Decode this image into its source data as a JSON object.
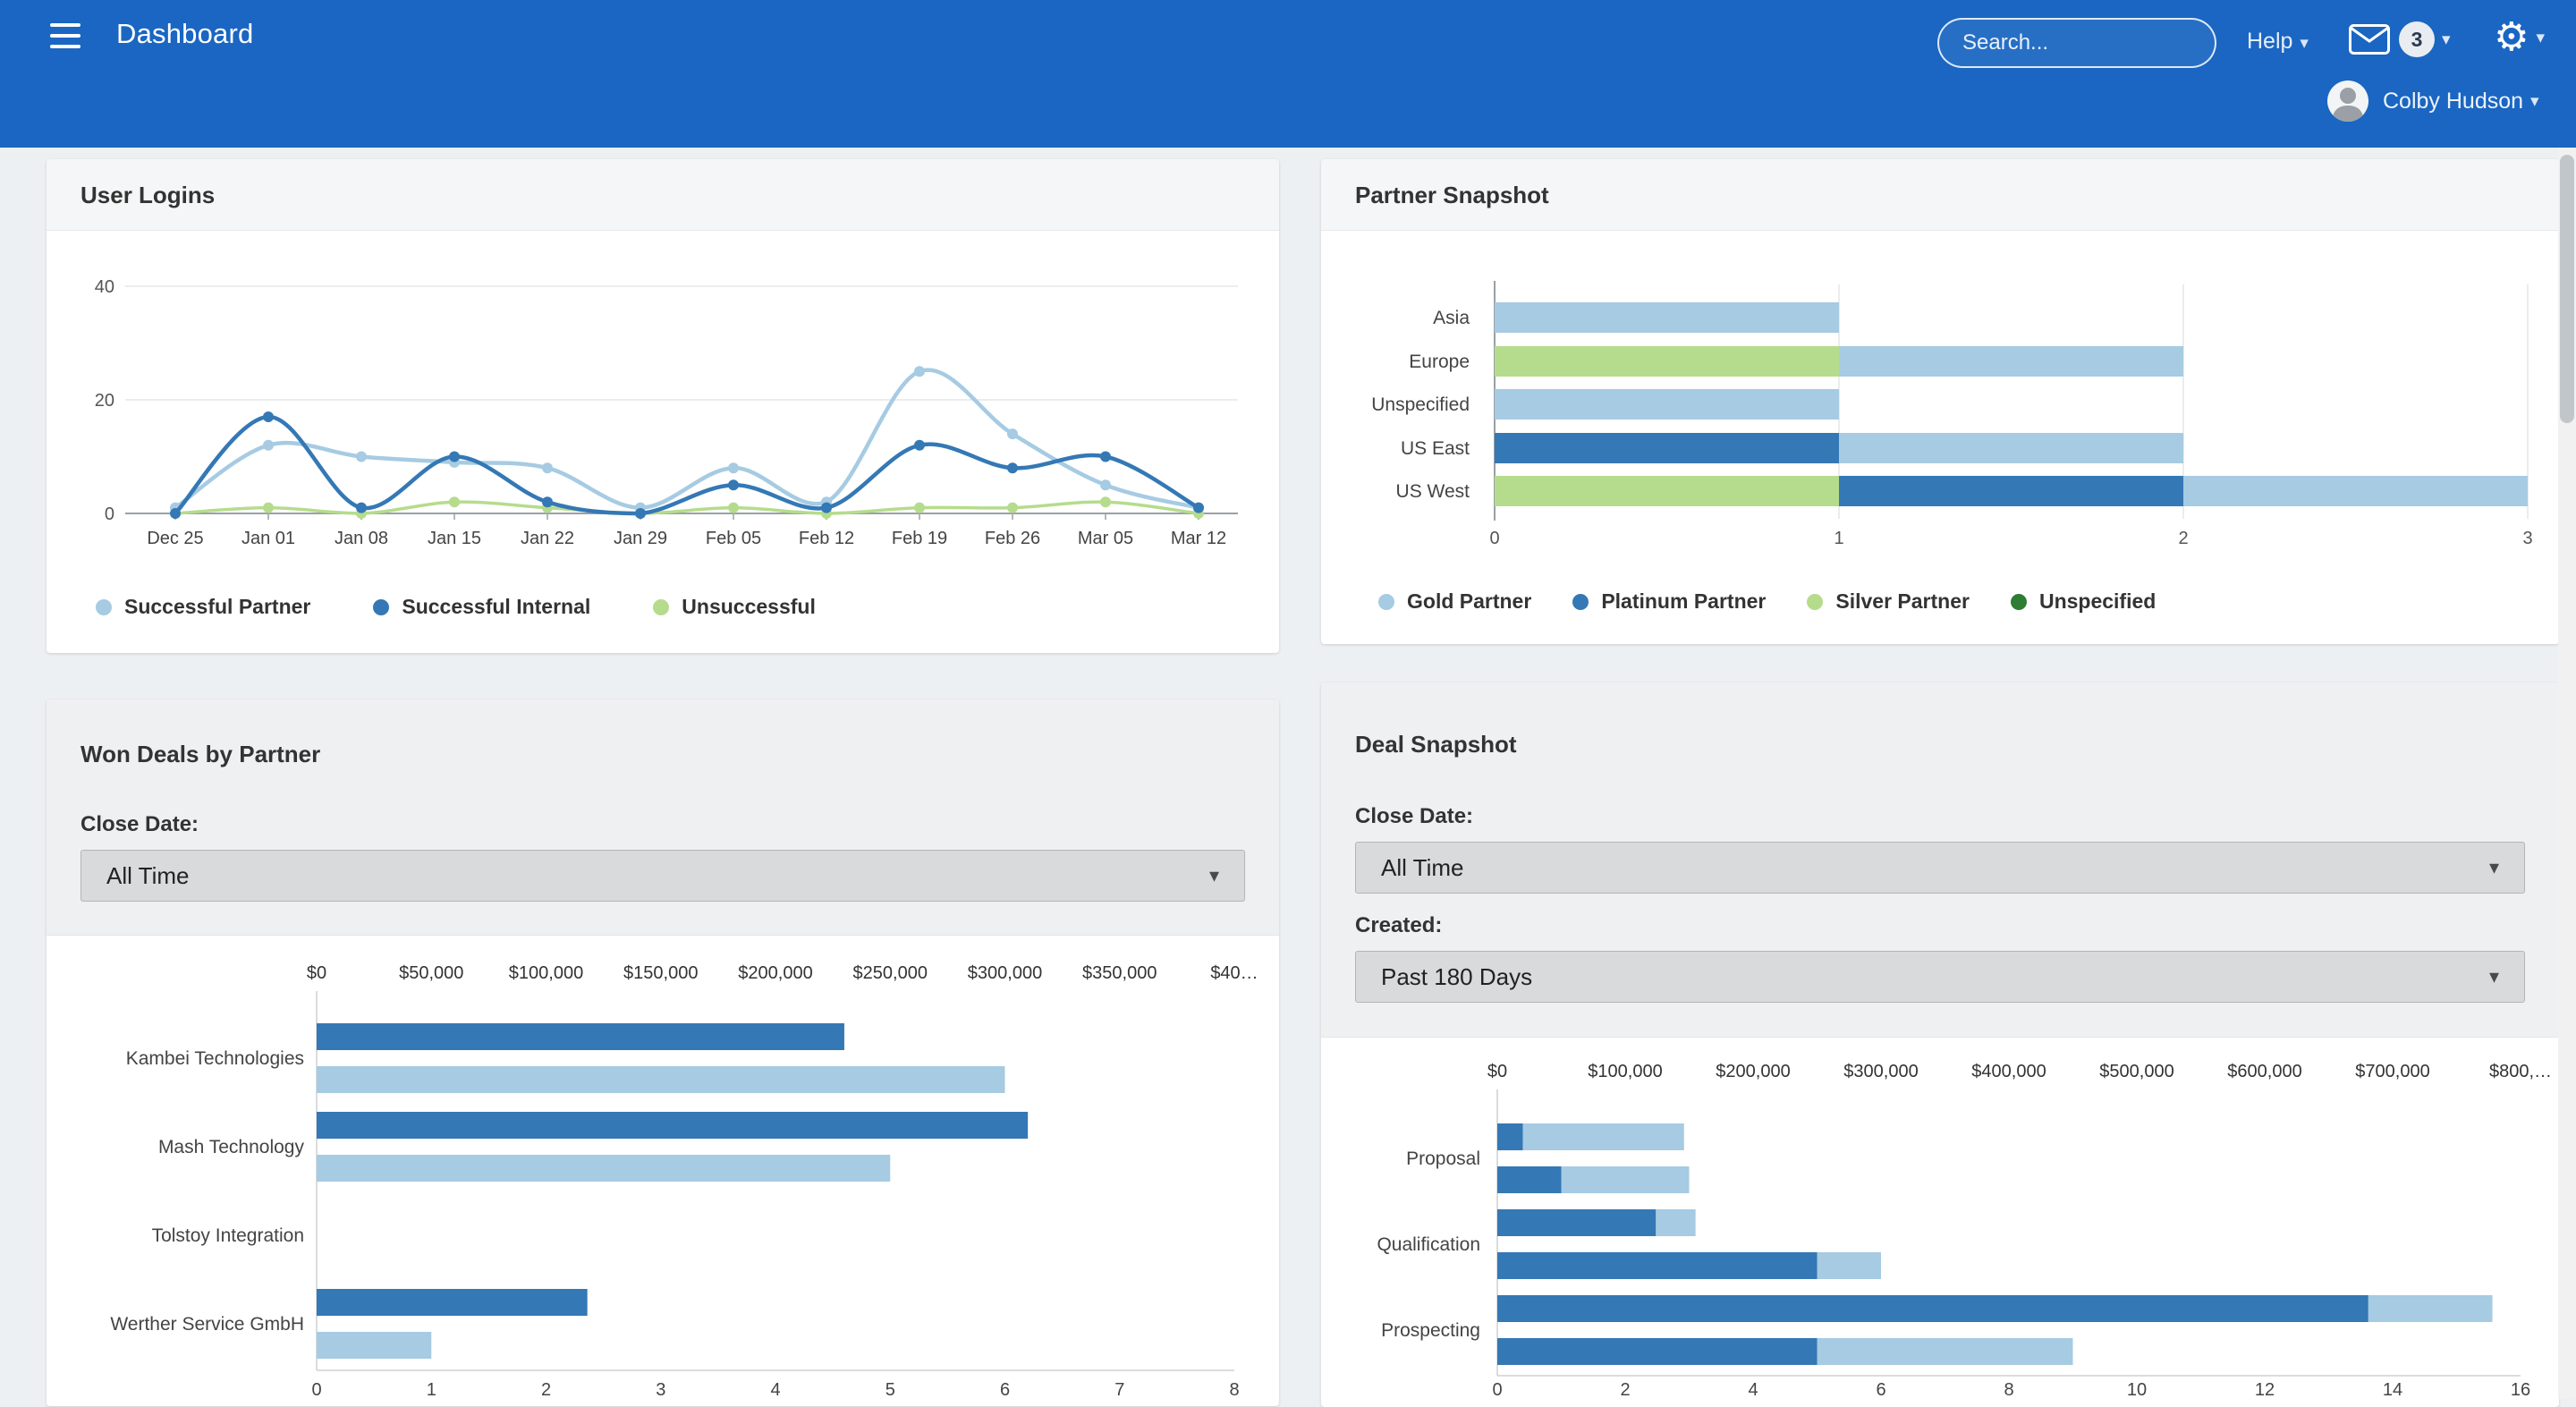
{
  "header": {
    "title": "Dashboard",
    "search_placeholder": "Search...",
    "help_label": "Help",
    "mail_badge": "3",
    "user_name": "Colby Hudson"
  },
  "colors": {
    "header_blue": "#1a66c2",
    "dark_blue": "#3478b5",
    "light_blue": "#a6cbe3",
    "green": "#b5dc8c",
    "dark_green": "#2e7d32"
  },
  "panels": {
    "user_logins": {
      "title": "User Logins"
    },
    "partner_snapshot": {
      "title": "Partner Snapshot"
    },
    "won_deals": {
      "title": "Won Deals by Partner",
      "close_date_label": "Close Date:",
      "close_date_value": "All Time"
    },
    "deal_snapshot": {
      "title": "Deal Snapshot",
      "close_date_label": "Close Date:",
      "close_date_value": "All Time",
      "created_label": "Created:",
      "created_value": "Past 180 Days"
    }
  },
  "chart_data": [
    {
      "id": "user-logins",
      "type": "line",
      "title": "User Logins",
      "x_labels": [
        "Dec 25",
        "Jan 01",
        "Jan 08",
        "Jan 15",
        "Jan 22",
        "Jan 29",
        "Feb 05",
        "Feb 12",
        "Feb 19",
        "Feb 26",
        "Mar 05",
        "Mar 12"
      ],
      "ylim": [
        0,
        40
      ],
      "y_ticks": [
        0,
        20,
        40
      ],
      "grid": "horizontal",
      "legend_position": "bottom",
      "series": [
        {
          "name": "Successful Partner",
          "color": "#a6cbe3",
          "values": [
            1,
            12,
            10,
            9,
            8,
            1,
            8,
            2,
            25,
            14,
            5,
            1
          ]
        },
        {
          "name": "Successful Internal",
          "color": "#3478b5",
          "values": [
            0,
            17,
            1,
            10,
            2,
            0,
            5,
            1,
            12,
            8,
            10,
            1
          ]
        },
        {
          "name": "Unsuccessful",
          "color": "#b5dc8c",
          "values": [
            0,
            1,
            0,
            2,
            1,
            0,
            1,
            0,
            1,
            1,
            2,
            0
          ]
        }
      ],
      "legend": [
        {
          "label": "Successful Partner",
          "color": "#a6cbe3"
        },
        {
          "label": "Successful Internal",
          "color": "#3478b5"
        },
        {
          "label": "Unsuccessful",
          "color": "#b5dc8c"
        }
      ]
    },
    {
      "id": "partner-snapshot",
      "type": "bar",
      "orientation": "horizontal-stacked",
      "title": "Partner Snapshot",
      "categories": [
        "Asia",
        "Europe",
        "Unspecified",
        "US East",
        "US West"
      ],
      "xlim": [
        0,
        3
      ],
      "x_ticks": [
        0,
        1,
        2,
        3
      ],
      "legend_position": "bottom",
      "series": [
        {
          "name": "Silver Partner",
          "color": "#b5dc8c",
          "values": [
            0,
            1,
            0,
            0,
            1
          ]
        },
        {
          "name": "Platinum Partner",
          "color": "#3478b5",
          "values": [
            0,
            0,
            0,
            1,
            1
          ]
        },
        {
          "name": "Gold Partner",
          "color": "#a6cbe3",
          "values": [
            1,
            1,
            1,
            1,
            1
          ]
        },
        {
          "name": "Unspecified",
          "color": "#2e7d32",
          "values": [
            0,
            0,
            0,
            0,
            0
          ]
        }
      ],
      "legend": [
        {
          "label": "Gold Partner",
          "color": "#a6cbe3"
        },
        {
          "label": "Platinum Partner",
          "color": "#3478b5"
        },
        {
          "label": "Silver Partner",
          "color": "#b5dc8c"
        },
        {
          "label": "Unspecified",
          "color": "#2e7d32"
        }
      ]
    },
    {
      "id": "won-deals",
      "type": "bar",
      "orientation": "horizontal-grouped",
      "title": "Won Deals by Partner",
      "categories": [
        "Kambei Technologies",
        "Mash Technology",
        "Tolstoy Integration",
        "Werther Service GmbH"
      ],
      "top_axis": {
        "labels": [
          "$0",
          "$50,000",
          "$100,000",
          "$150,000",
          "$200,000",
          "$250,000",
          "$300,000",
          "$350,000",
          "$40…"
        ],
        "max": 400000
      },
      "bottom_axis": {
        "ticks": [
          0,
          1,
          2,
          3,
          4,
          5,
          6,
          7,
          8
        ],
        "max": 8
      },
      "series": [
        {
          "name": "Amount (USD)",
          "axis": "top",
          "color": "#3478b5",
          "values": [
            230000,
            310000,
            0,
            118000
          ]
        },
        {
          "name": "Deal Count",
          "axis": "bottom",
          "color": "#a6cbe3",
          "values": [
            6,
            5,
            0,
            1
          ]
        }
      ]
    },
    {
      "id": "deal-snapshot",
      "type": "bar",
      "orientation": "horizontal-stacked-pairs",
      "title": "Deal Snapshot",
      "categories": [
        "Proposal",
        "Qualification",
        "Prospecting"
      ],
      "top_axis": {
        "labels": [
          "$0",
          "$100,000",
          "$200,000",
          "$300,000",
          "$400,000",
          "$500,000",
          "$600,000",
          "$700,000",
          "$800,…"
        ],
        "max": 800000
      },
      "bottom_axis": {
        "ticks": [
          0,
          2,
          4,
          6,
          8,
          10,
          12,
          14,
          16
        ],
        "max": 16
      },
      "colors": {
        "dark": "#3478b5",
        "light": "#a6cbe3"
      },
      "rows": [
        {
          "category": "Proposal",
          "amount": {
            "dark": 20000,
            "light": 126000
          },
          "count": {
            "dark": 1,
            "light": 2
          }
        },
        {
          "category": "Qualification",
          "amount": {
            "dark": 124000,
            "light": 31000
          },
          "count": {
            "dark": 5,
            "light": 1
          }
        },
        {
          "category": "Prospecting",
          "amount": {
            "dark": 681000,
            "light": 97000
          },
          "count": {
            "dark": 5,
            "light": 4
          }
        }
      ]
    }
  ]
}
